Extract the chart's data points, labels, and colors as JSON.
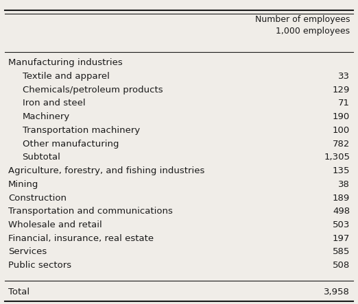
{
  "header_col1": "",
  "header_col2": "Number of employees\n1,000 employees",
  "rows": [
    {
      "label": "Manufacturing industries",
      "value": "",
      "indent": false,
      "bold": false,
      "is_section": true
    },
    {
      "label": "Textile and apparel",
      "value": "33",
      "indent": true,
      "bold": false,
      "is_section": false
    },
    {
      "label": "Chemicals/petroleum products",
      "value": "129",
      "indent": true,
      "bold": false,
      "is_section": false
    },
    {
      "label": "Iron and steel",
      "value": "71",
      "indent": true,
      "bold": false,
      "is_section": false
    },
    {
      "label": "Machinery",
      "value": "190",
      "indent": true,
      "bold": false,
      "is_section": false
    },
    {
      "label": "Transportation machinery",
      "value": "100",
      "indent": true,
      "bold": false,
      "is_section": false
    },
    {
      "label": "Other manufacturing",
      "value": "782",
      "indent": true,
      "bold": false,
      "is_section": false
    },
    {
      "label": "Subtotal",
      "value": "1,305",
      "indent": true,
      "bold": false,
      "is_section": false
    },
    {
      "label": "Agriculture, forestry, and fishing industries",
      "value": "135",
      "indent": false,
      "bold": false,
      "is_section": false
    },
    {
      "label": "Mining",
      "value": "38",
      "indent": false,
      "bold": false,
      "is_section": false
    },
    {
      "label": "Construction",
      "value": "189",
      "indent": false,
      "bold": false,
      "is_section": false
    },
    {
      "label": "Transportation and communications",
      "value": "498",
      "indent": false,
      "bold": false,
      "is_section": false
    },
    {
      "label": "Wholesale and retail",
      "value": "503",
      "indent": false,
      "bold": false,
      "is_section": false
    },
    {
      "label": "Financial, insurance, real estate",
      "value": "197",
      "indent": false,
      "bold": false,
      "is_section": false
    },
    {
      "label": "Services",
      "value": "585",
      "indent": false,
      "bold": false,
      "is_section": false
    },
    {
      "label": "Public sectors",
      "value": "508",
      "indent": false,
      "bold": false,
      "is_section": false
    }
  ],
  "total_label": "Total",
  "total_value": "3,958",
  "bg_color": "#f0ede8",
  "text_color": "#1a1a1a",
  "font_size": 9.5,
  "header_font_size": 9.0
}
